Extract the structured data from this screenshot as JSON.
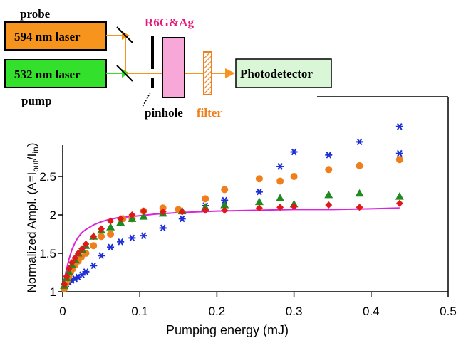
{
  "diagram": {
    "probe_label": "probe",
    "pump_label": "pump",
    "laser_594_label": "594 nm laser",
    "laser_532_label": "532 nm laser",
    "sample_label": "R6G&Ag",
    "pinhole_label": "pinhole",
    "filter_label": "filter",
    "detector_label": "Photodetector",
    "colors": {
      "laser_594": "#f7941d",
      "laser_532": "#33e02c",
      "sample": "#f7a8d8",
      "sample_label": "#e8187a",
      "filter": "#f07e1a",
      "detector": "#d9f7d6"
    }
  },
  "chart_data": {
    "type": "scatter",
    "xlabel": "Pumping energy (mJ)",
    "ylabel_main": "Normalized Ampl. (A=I",
    "ylabel_sub1": "out",
    "ylabel_mid": "/I",
    "ylabel_sub2": "in",
    "ylabel_end": ")",
    "xlim": [
      0,
      0.5
    ],
    "ylim": [
      1,
      3.0
    ],
    "xticks": [
      "0",
      "0.1",
      "0.2",
      "0.3",
      "0.4",
      "0.5"
    ],
    "xtick_values": [
      0,
      0.1,
      0.2,
      0.3,
      0.4,
      0.5
    ],
    "yticks": [
      "1",
      "1.5",
      "2",
      "2.5"
    ],
    "ytick_values": [
      1,
      1.5,
      2,
      2.5
    ],
    "series": [
      {
        "marker": "asterisk",
        "color": "#1f2fd6",
        "x": [
          0.002,
          0.005,
          0.008,
          0.012,
          0.016,
          0.02,
          0.025,
          0.03,
          0.04,
          0.05,
          0.062,
          0.075,
          0.09,
          0.105,
          0.13,
          0.155,
          0.185,
          0.21,
          0.255,
          0.282,
          0.3,
          0.345,
          0.385,
          0.437,
          0.437
        ],
        "y": [
          1.05,
          1.1,
          1.13,
          1.15,
          1.17,
          1.19,
          1.22,
          1.26,
          1.34,
          1.47,
          1.58,
          1.65,
          1.7,
          1.73,
          1.83,
          1.95,
          2.12,
          2.19,
          2.3,
          2.63,
          2.82,
          2.78,
          2.95,
          2.8,
          3.15
        ]
      },
      {
        "marker": "circle",
        "color": "#f07e1a",
        "x": [
          0.002,
          0.004,
          0.006,
          0.008,
          0.01,
          0.013,
          0.016,
          0.02,
          0.024,
          0.03,
          0.04,
          0.05,
          0.062,
          0.078,
          0.09,
          0.105,
          0.13,
          0.15,
          0.185,
          0.21,
          0.255,
          0.282,
          0.3,
          0.345,
          0.385,
          0.437
        ],
        "y": [
          1.04,
          1.1,
          1.15,
          1.2,
          1.25,
          1.3,
          1.35,
          1.4,
          1.45,
          1.5,
          1.6,
          1.72,
          1.75,
          1.95,
          1.95,
          2.05,
          2.09,
          2.07,
          2.21,
          2.33,
          2.47,
          2.44,
          2.5,
          2.59,
          2.64,
          2.72
        ]
      },
      {
        "marker": "triangle",
        "color": "#1f8a1f",
        "x": [
          0.002,
          0.005,
          0.008,
          0.012,
          0.016,
          0.02,
          0.025,
          0.03,
          0.04,
          0.05,
          0.062,
          0.075,
          0.09,
          0.105,
          0.13,
          0.155,
          0.185,
          0.21,
          0.255,
          0.282,
          0.3,
          0.345,
          0.385,
          0.437
        ],
        "y": [
          1.08,
          1.18,
          1.26,
          1.35,
          1.42,
          1.5,
          1.55,
          1.6,
          1.72,
          1.8,
          1.84,
          1.9,
          1.95,
          1.98,
          2.02,
          2.05,
          2.1,
          2.13,
          2.17,
          2.22,
          2.14,
          2.26,
          2.28,
          2.24
        ]
      },
      {
        "marker": "diamond",
        "color": "#e01818",
        "x": [
          0.002,
          0.005,
          0.008,
          0.012,
          0.016,
          0.02,
          0.025,
          0.03,
          0.04,
          0.05,
          0.062,
          0.075,
          0.09,
          0.105,
          0.13,
          0.155,
          0.185,
          0.21,
          0.255,
          0.282,
          0.3,
          0.345,
          0.385,
          0.437
        ],
        "y": [
          1.1,
          1.2,
          1.3,
          1.38,
          1.44,
          1.5,
          1.56,
          1.62,
          1.72,
          1.82,
          1.92,
          1.95,
          2.0,
          2.05,
          2.04,
          2.04,
          2.06,
          2.06,
          2.09,
          2.1,
          2.11,
          2.13,
          2.1,
          2.15
        ]
      }
    ],
    "fit_curve": {
      "color": "#dd22dd",
      "x": [
        0.0,
        0.004,
        0.008,
        0.012,
        0.016,
        0.02,
        0.025,
        0.03,
        0.035,
        0.04,
        0.05,
        0.06,
        0.07,
        0.08,
        0.1,
        0.12,
        0.15,
        0.2,
        0.25,
        0.3,
        0.35,
        0.4,
        0.437
      ],
      "y": [
        1.0,
        1.25,
        1.42,
        1.55,
        1.64,
        1.71,
        1.77,
        1.81,
        1.84,
        1.87,
        1.91,
        1.94,
        1.96,
        1.97,
        1.99,
        2.01,
        2.03,
        2.05,
        2.06,
        2.07,
        2.07,
        2.08,
        2.09
      ]
    }
  }
}
